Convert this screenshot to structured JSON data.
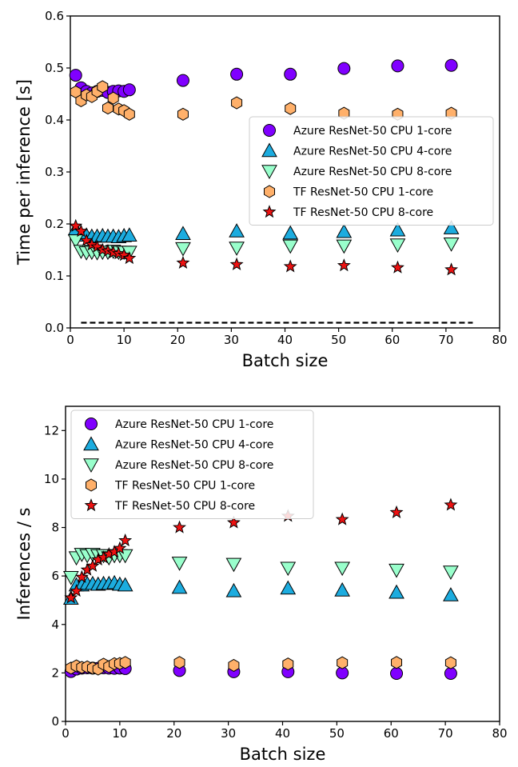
{
  "series_styles": [
    {
      "marker": "circle",
      "color": "#8000ff"
    },
    {
      "marker": "triangle-up",
      "color": "#1cacdf"
    },
    {
      "marker": "triangle-down",
      "color": "#99ffcc"
    },
    {
      "marker": "hexagon",
      "color": "#ffb06a"
    },
    {
      "marker": "star",
      "color": "#ee1111"
    }
  ],
  "chart_data": [
    {
      "type": "scatter",
      "xlabel": "Batch size",
      "ylabel": "Time per inference [s]",
      "xlim": [
        0,
        80
      ],
      "ylim": [
        0,
        0.6
      ],
      "xticks": [
        0,
        10,
        20,
        30,
        40,
        50,
        60,
        70,
        80
      ],
      "yticks": [
        0.0,
        0.1,
        0.2,
        0.3,
        0.4,
        0.5,
        0.6
      ],
      "ytick_labels": [
        "0.0",
        "0.1",
        "0.2",
        "0.3",
        "0.4",
        "0.5",
        "0.6"
      ],
      "legend_position": "center-right",
      "reference_line": {
        "style": "dashed",
        "x": [
          2,
          75
        ],
        "y": 0.01
      },
      "series": [
        {
          "name": "Azure ResNet-50 CPU 1-core",
          "x": [
            1,
            2,
            3,
            4,
            5,
            6,
            7,
            8,
            9,
            10,
            11,
            21,
            31,
            41,
            51,
            61,
            71
          ],
          "y": [
            0.486,
            0.462,
            0.455,
            0.452,
            0.455,
            0.457,
            0.453,
            0.455,
            0.456,
            0.455,
            0.458,
            0.476,
            0.488,
            0.488,
            0.499,
            0.504,
            0.505
          ]
        },
        {
          "name": "Azure ResNet-50 CPU 4-core",
          "x": [
            1,
            2,
            3,
            4,
            5,
            6,
            7,
            8,
            9,
            10,
            11,
            21,
            31,
            41,
            51,
            61,
            71
          ],
          "y": [
            0.19,
            0.178,
            0.178,
            0.176,
            0.176,
            0.177,
            0.176,
            0.176,
            0.175,
            0.177,
            0.178,
            0.181,
            0.186,
            0.182,
            0.185,
            0.188,
            0.192
          ]
        },
        {
          "name": "Azure ResNet-50 CPU 8-core",
          "x": [
            1,
            2,
            3,
            4,
            5,
            6,
            7,
            8,
            9,
            10,
            11,
            21,
            31,
            41,
            51,
            61,
            71
          ],
          "y": [
            0.168,
            0.148,
            0.145,
            0.146,
            0.145,
            0.146,
            0.146,
            0.148,
            0.146,
            0.146,
            0.146,
            0.153,
            0.154,
            0.158,
            0.158,
            0.16,
            0.162
          ]
        },
        {
          "name": "TF ResNet-50 CPU 1-core",
          "x": [
            1,
            2,
            3,
            4,
            5,
            6,
            7,
            8,
            9,
            10,
            11,
            21,
            31,
            41,
            51,
            61,
            71
          ],
          "y": [
            0.454,
            0.437,
            0.448,
            0.445,
            0.455,
            0.464,
            0.423,
            0.442,
            0.421,
            0.418,
            0.411,
            0.411,
            0.433,
            0.422,
            0.413,
            0.411,
            0.413
          ]
        },
        {
          "name": "TF ResNet-50 CPU 8-core",
          "x": [
            1,
            2,
            3,
            4,
            5,
            6,
            7,
            8,
            9,
            10,
            11,
            21,
            31,
            41,
            51,
            61,
            71
          ],
          "y": [
            0.196,
            0.186,
            0.168,
            0.16,
            0.156,
            0.15,
            0.148,
            0.145,
            0.143,
            0.14,
            0.134,
            0.125,
            0.122,
            0.118,
            0.12,
            0.116,
            0.112
          ]
        }
      ]
    },
    {
      "type": "scatter",
      "xlabel": "Batch size",
      "ylabel": "Inferences / s",
      "xlim": [
        0,
        80
      ],
      "ylim": [
        0,
        13
      ],
      "xticks": [
        0,
        10,
        20,
        30,
        40,
        50,
        60,
        70,
        80
      ],
      "yticks": [
        0,
        2,
        4,
        6,
        8,
        10,
        12
      ],
      "ytick_labels": [
        "0",
        "2",
        "4",
        "6",
        "8",
        "10",
        "12"
      ],
      "legend_position": "upper-left",
      "series": [
        {
          "name": "Azure ResNet-50 CPU 1-core",
          "x": [
            1,
            2,
            3,
            4,
            5,
            6,
            7,
            8,
            9,
            10,
            11,
            21,
            31,
            41,
            51,
            61,
            71
          ],
          "y": [
            2.06,
            2.16,
            2.2,
            2.21,
            2.2,
            2.19,
            2.21,
            2.2,
            2.19,
            2.2,
            2.18,
            2.1,
            2.05,
            2.05,
            2.0,
            1.98,
            1.98
          ]
        },
        {
          "name": "Azure ResNet-50 CPU 4-core",
          "x": [
            1,
            2,
            3,
            4,
            5,
            6,
            7,
            8,
            9,
            10,
            11,
            21,
            31,
            41,
            51,
            61,
            71
          ],
          "y": [
            5.07,
            5.62,
            5.62,
            5.68,
            5.68,
            5.65,
            5.68,
            5.68,
            5.71,
            5.65,
            5.62,
            5.52,
            5.38,
            5.49,
            5.41,
            5.32,
            5.21
          ]
        },
        {
          "name": "Azure ResNet-50 CPU 8-core",
          "x": [
            1,
            2,
            3,
            4,
            5,
            6,
            7,
            8,
            9,
            10,
            11,
            21,
            31,
            41,
            51,
            61,
            71
          ],
          "y": [
            5.95,
            6.76,
            6.9,
            6.85,
            6.9,
            6.85,
            6.85,
            6.76,
            6.85,
            6.85,
            6.85,
            6.54,
            6.49,
            6.33,
            6.33,
            6.25,
            6.17
          ]
        },
        {
          "name": "TF ResNet-50 CPU 1-core",
          "x": [
            1,
            2,
            3,
            4,
            5,
            6,
            7,
            8,
            9,
            10,
            11,
            21,
            31,
            41,
            51,
            61,
            71
          ],
          "y": [
            2.2,
            2.29,
            2.23,
            2.25,
            2.2,
            2.16,
            2.36,
            2.26,
            2.38,
            2.39,
            2.43,
            2.43,
            2.31,
            2.37,
            2.42,
            2.43,
            2.42
          ]
        },
        {
          "name": "TF ResNet-50 CPU 8-core",
          "x": [
            1,
            2,
            3,
            4,
            5,
            6,
            7,
            8,
            9,
            10,
            11,
            21,
            31,
            41,
            51,
            61,
            71
          ],
          "y": [
            5.1,
            5.38,
            5.95,
            6.25,
            6.41,
            6.67,
            6.76,
            6.9,
            6.99,
            7.14,
            7.46,
            8.0,
            8.2,
            8.47,
            8.33,
            8.62,
            8.93
          ]
        }
      ]
    }
  ]
}
